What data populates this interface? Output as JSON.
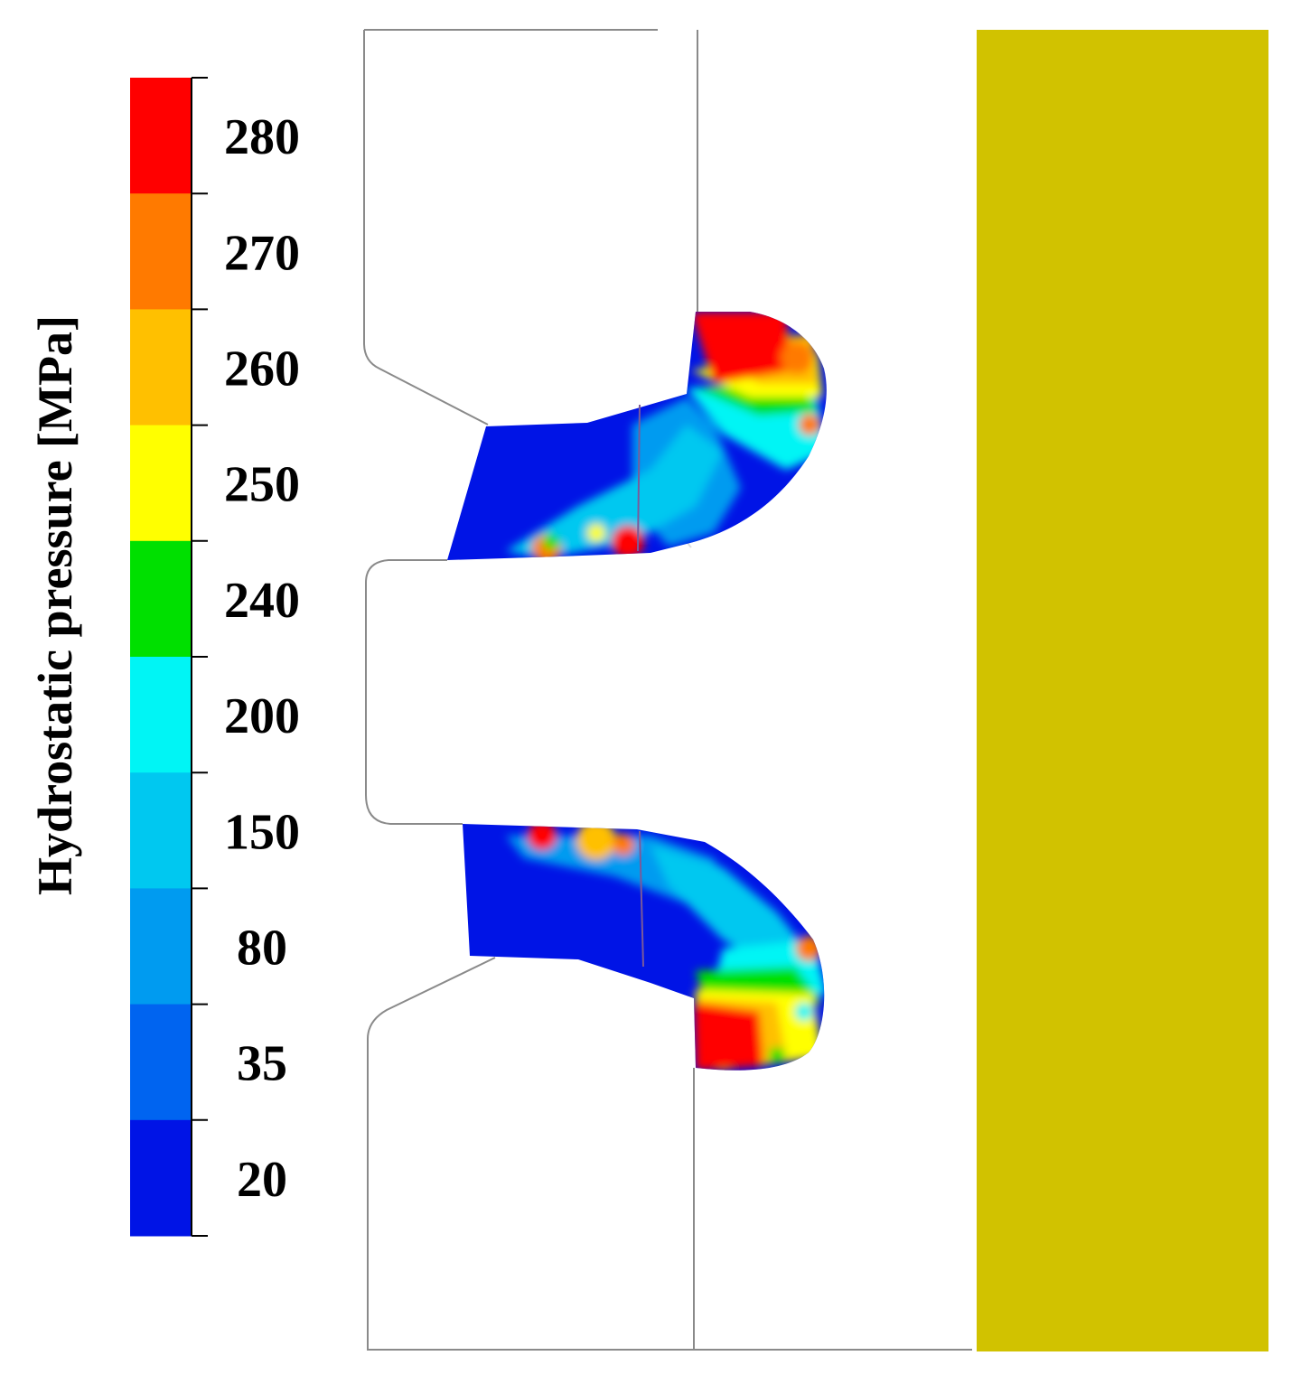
{
  "legend": {
    "title": "Hydrostatic pressure [MPa]",
    "levels": [
      {
        "label": "280",
        "color": "#ff0000"
      },
      {
        "label": "270",
        "color": "#ff7a00"
      },
      {
        "label": "260",
        "color": "#ffc000"
      },
      {
        "label": "250",
        "color": "#ffff00"
      },
      {
        "label": "240",
        "color": "#00e000"
      },
      {
        "label": "200",
        "color": "#00f5f5"
      },
      {
        "label": "150",
        "color": "#00c8f0"
      },
      {
        "label": "80",
        "color": "#009bf0"
      },
      {
        "label": "35",
        "color": "#0064f0"
      },
      {
        "label": "20",
        "color": "#0014e6"
      }
    ]
  },
  "colors": {
    "die": "#d1c200",
    "outline": "#8a8a8a",
    "low_pressure": "#0014e6",
    "high_pressure": "#ff0000"
  }
}
